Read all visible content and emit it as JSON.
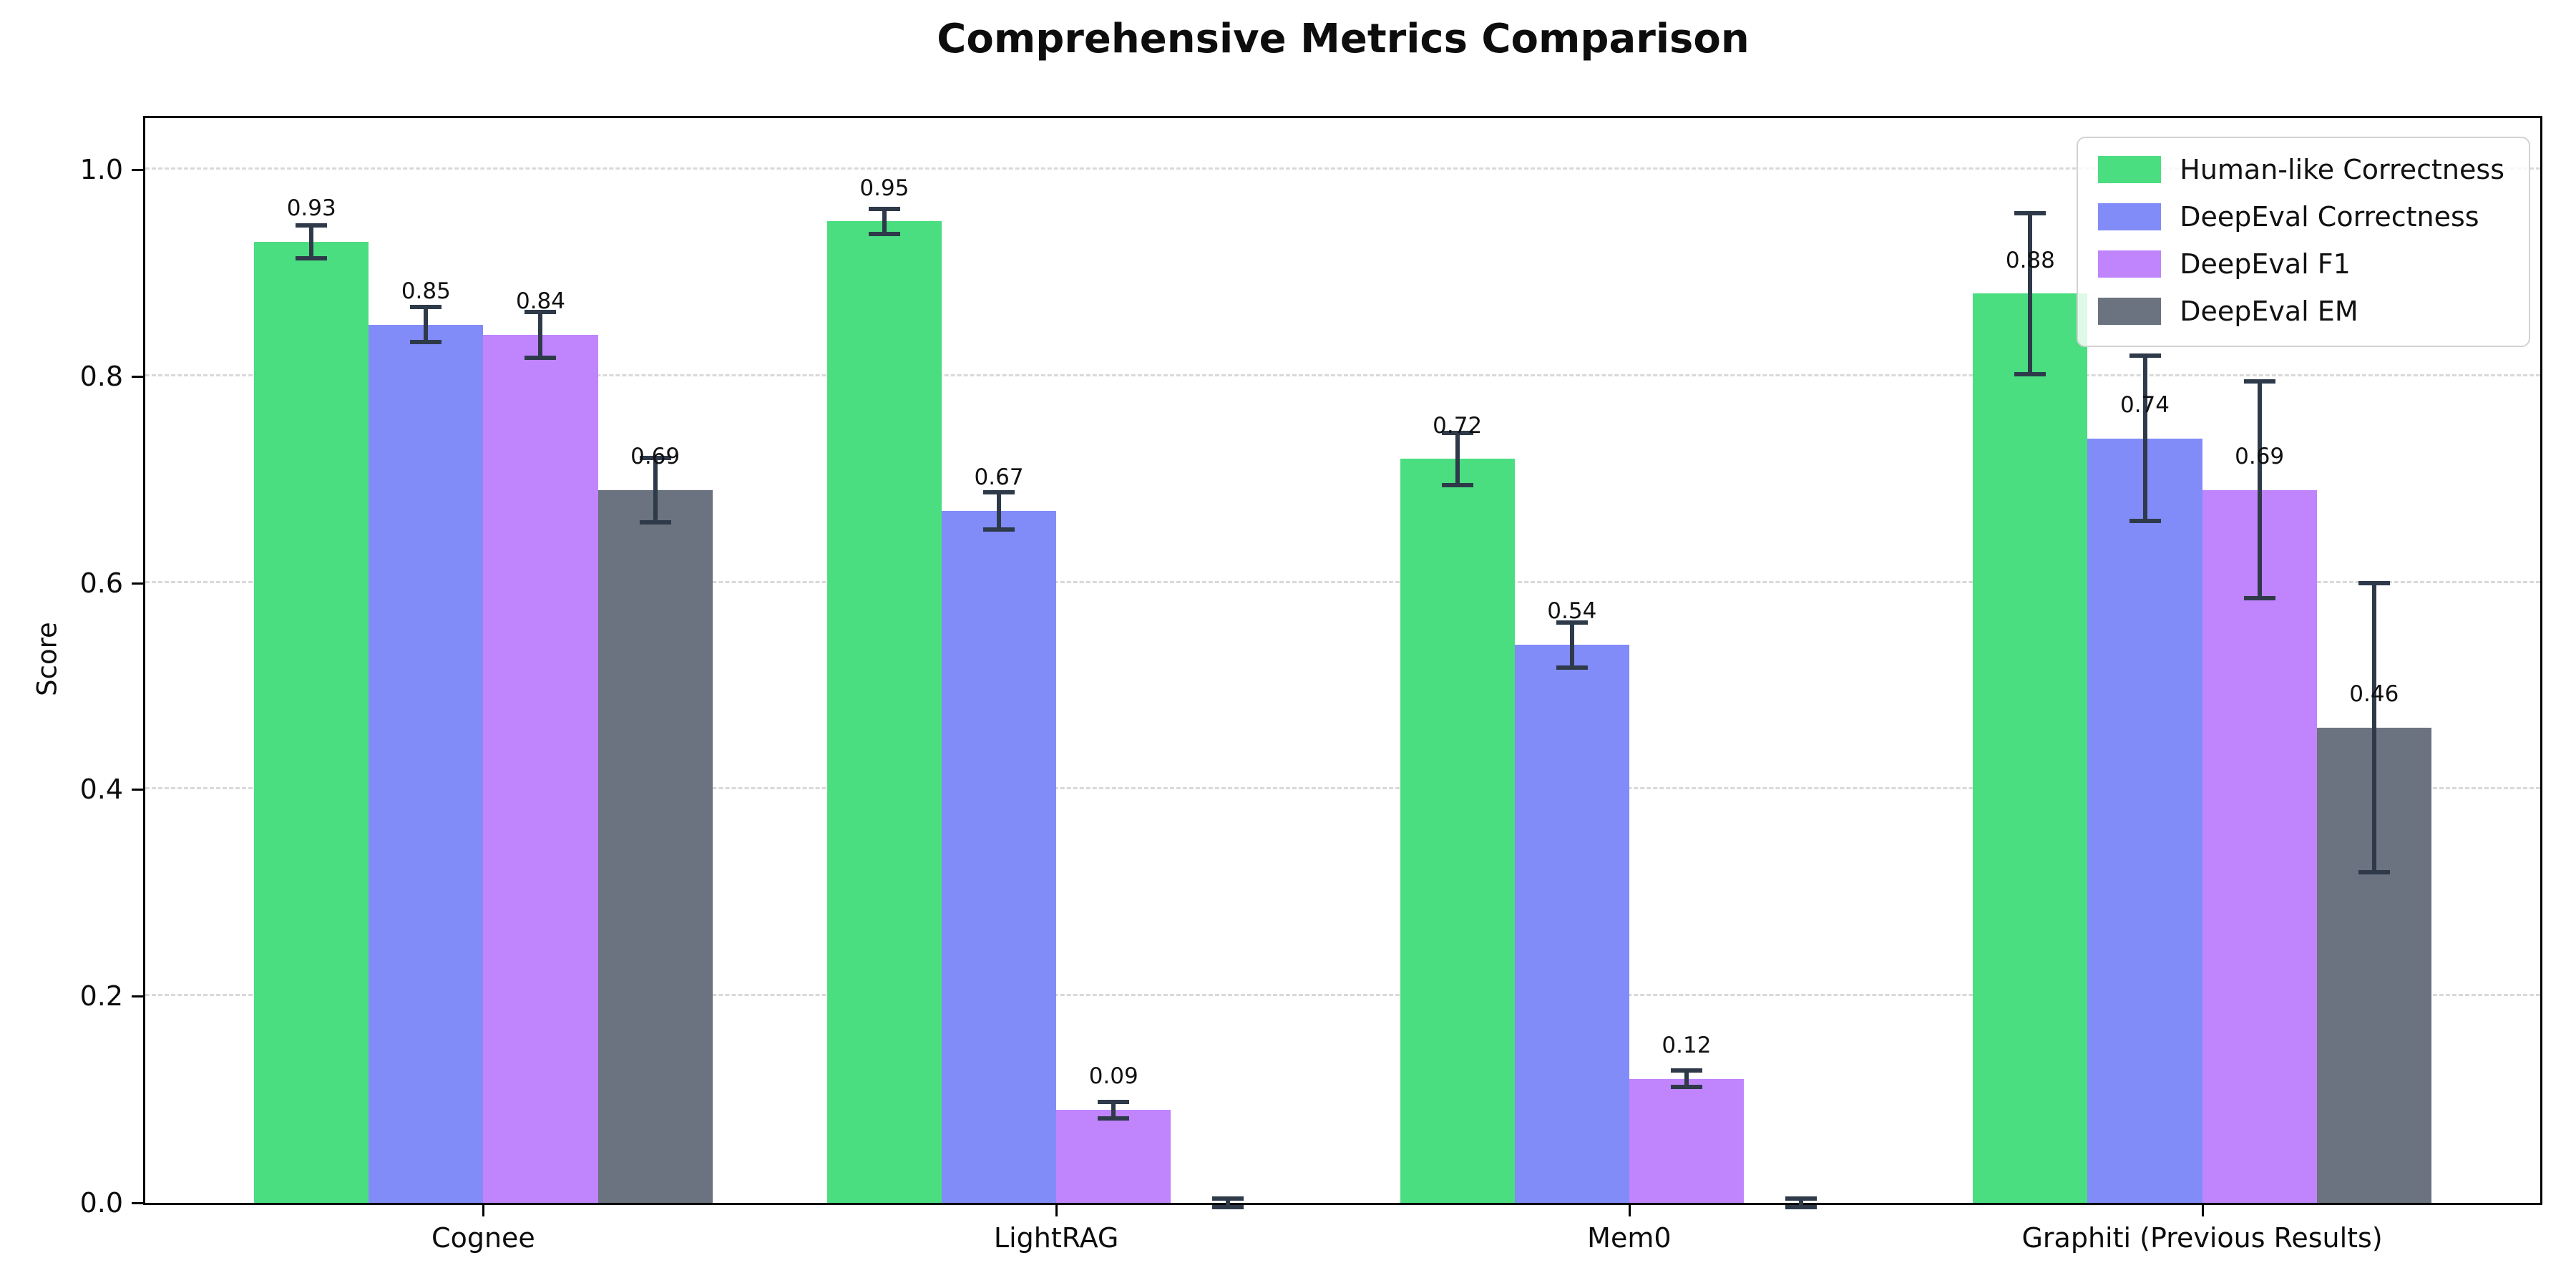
{
  "chart_data": {
    "type": "bar",
    "title": "Comprehensive Metrics Comparison",
    "xlabel": "",
    "ylabel": "Score",
    "categories": [
      "Cognee",
      "LightRAG",
      "Mem0",
      "Graphiti (Previous Results)"
    ],
    "series": [
      {
        "name": "Human-like Correctness",
        "color": "#4ade80",
        "values": [
          0.93,
          0.95,
          0.72,
          0.88
        ],
        "errors": [
          0.016,
          0.012,
          0.025,
          0.078
        ],
        "labels": [
          "0.93",
          "0.95",
          "0.72",
          "0.88"
        ]
      },
      {
        "name": "DeepEval Correctness",
        "color": "#818cf8",
        "values": [
          0.85,
          0.67,
          0.54,
          0.74
        ],
        "errors": [
          0.017,
          0.018,
          0.022,
          0.08
        ],
        "labels": [
          "0.85",
          "0.67",
          "0.54",
          "0.74"
        ]
      },
      {
        "name": "DeepEval F1",
        "color": "#c084fc",
        "values": [
          0.84,
          0.09,
          0.12,
          0.69
        ],
        "errors": [
          0.022,
          0.008,
          0.008,
          0.105
        ],
        "labels": [
          "0.84",
          "0.09",
          "0.12",
          "0.69"
        ]
      },
      {
        "name": "DeepEval EM",
        "color": "#6b7280",
        "values": [
          0.69,
          0.0,
          0.0,
          0.46
        ],
        "errors": [
          0.031,
          0.004,
          0.004,
          0.14
        ],
        "labels": [
          "0.69",
          null,
          null,
          "0.46"
        ]
      }
    ],
    "yticklabels": [
      "0.0",
      "0.2",
      "0.4",
      "0.6",
      "0.8",
      "1.0"
    ],
    "ytick_values": [
      0.0,
      0.2,
      0.4,
      0.6,
      0.8,
      1.0
    ],
    "ylim": [
      0,
      1.05
    ],
    "grid": "horizontal-dashed",
    "gridline_color": "#d9d9d9",
    "errorbar_color": "#2e3a4a",
    "spine_color": "#000000",
    "legend_position": "upper right",
    "value_label_offset": 0.02,
    "bar_width_units": 0.2,
    "group_offsets": [
      -0.3,
      -0.1,
      0.1,
      0.3
    ],
    "x_units_span": 4.18,
    "x_left_pad_units": 0.59
  }
}
